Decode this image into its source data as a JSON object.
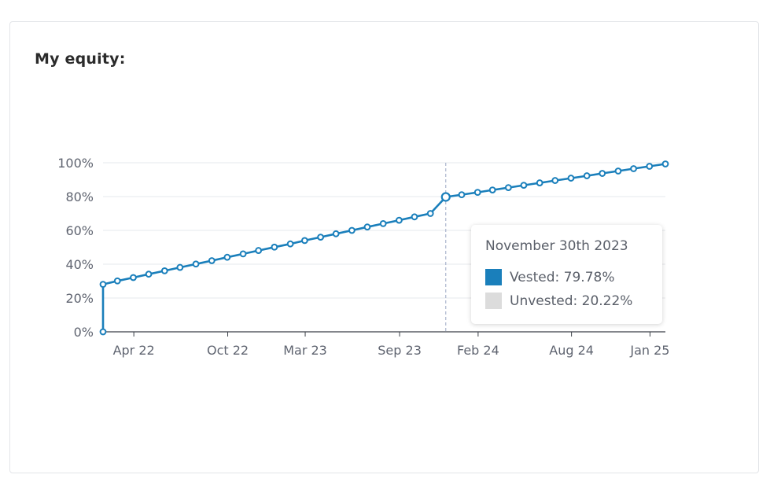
{
  "card": {
    "title": "My equity:"
  },
  "colors": {
    "vested": "#1a7fbb",
    "unvested": "#dcdcdc",
    "grid": "#e6e8ec",
    "guide": "#9aa6c4"
  },
  "tooltip": {
    "date": "November 30th 2023",
    "vested_label": "Vested: 79.78%",
    "unvested_label": "Unvested: 20.22%"
  },
  "chart_data": {
    "type": "line",
    "title": "",
    "xlabel": "",
    "ylabel": "",
    "ylim": [
      0,
      100
    ],
    "xlim": [
      "2022-01-31",
      "2025-01-31"
    ],
    "yticks": [
      "0%",
      "20%",
      "40%",
      "60%",
      "80%",
      "100%"
    ],
    "xticks": [
      "Apr 22",
      "Oct 22",
      "Mar 23",
      "Sep 23",
      "Feb 24",
      "Aug 24",
      "Jan 25"
    ],
    "grid": true,
    "highlighted_point": {
      "x": "2023-11-30",
      "y": 79.78
    },
    "series": [
      {
        "points": [
          {
            "x": "2022-01-31",
            "y": 0
          },
          {
            "x": "2022-01-31",
            "y": 28.08
          },
          {
            "x": "2022-02-28",
            "y": 30.1
          },
          {
            "x": "2022-03-31",
            "y": 32.1
          },
          {
            "x": "2022-04-30",
            "y": 34.1
          },
          {
            "x": "2022-05-31",
            "y": 36.1
          },
          {
            "x": "2022-06-30",
            "y": 38.1
          },
          {
            "x": "2022-07-31",
            "y": 40.1
          },
          {
            "x": "2022-08-31",
            "y": 42.1
          },
          {
            "x": "2022-09-30",
            "y": 44.1
          },
          {
            "x": "2022-10-31",
            "y": 46.1
          },
          {
            "x": "2022-11-30",
            "y": 48.1
          },
          {
            "x": "2022-12-31",
            "y": 50.1
          },
          {
            "x": "2023-01-31",
            "y": 52.0
          },
          {
            "x": "2023-02-28",
            "y": 54.0
          },
          {
            "x": "2023-03-31",
            "y": 56.0
          },
          {
            "x": "2023-04-30",
            "y": 58.0
          },
          {
            "x": "2023-05-31",
            "y": 60.0
          },
          {
            "x": "2023-06-30",
            "y": 62.0
          },
          {
            "x": "2023-07-31",
            "y": 64.0
          },
          {
            "x": "2023-08-31",
            "y": 66.0
          },
          {
            "x": "2023-09-30",
            "y": 68.0
          },
          {
            "x": "2023-10-31",
            "y": 70.0
          },
          {
            "x": "2023-11-30",
            "y": 79.78
          },
          {
            "x": "2023-12-31",
            "y": 81.1
          },
          {
            "x": "2024-01-31",
            "y": 82.5
          },
          {
            "x": "2024-02-29",
            "y": 83.9
          },
          {
            "x": "2024-03-31",
            "y": 85.3
          },
          {
            "x": "2024-04-30",
            "y": 86.7
          },
          {
            "x": "2024-05-31",
            "y": 88.1
          },
          {
            "x": "2024-06-30",
            "y": 89.5
          },
          {
            "x": "2024-07-31",
            "y": 90.9
          },
          {
            "x": "2024-08-31",
            "y": 92.3
          },
          {
            "x": "2024-09-30",
            "y": 93.7
          },
          {
            "x": "2024-10-31",
            "y": 95.1
          },
          {
            "x": "2024-11-30",
            "y": 96.5
          },
          {
            "x": "2024-12-31",
            "y": 97.9
          },
          {
            "x": "2025-01-31",
            "y": 99.3
          }
        ]
      }
    ]
  }
}
